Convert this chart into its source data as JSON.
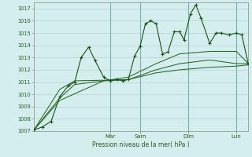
{
  "background_color": "#d4eeed",
  "grid_color": "#aacfcf",
  "line_color_main": "#1a5218",
  "line_color_smooth": "#2a6628",
  "ylabel": "Pression niveau de la mer( hPa )",
  "ylim": [
    1007,
    1017.5
  ],
  "yticks": [
    1007,
    1008,
    1009,
    1010,
    1011,
    1012,
    1013,
    1014,
    1015,
    1016,
    1017
  ],
  "day_labels": [
    "Mar",
    "Sam",
    "Dim",
    "Lun"
  ],
  "day_positions": [
    0.355,
    0.495,
    0.72,
    0.945
  ],
  "series1": [
    [
      0.0,
      1007.1
    ],
    [
      0.04,
      1007.35
    ],
    [
      0.08,
      1007.8
    ],
    [
      0.12,
      1009.8
    ],
    [
      0.16,
      1010.7
    ],
    [
      0.19,
      1011.0
    ],
    [
      0.22,
      1013.0
    ],
    [
      0.255,
      1013.85
    ],
    [
      0.285,
      1012.75
    ],
    [
      0.325,
      1011.4
    ],
    [
      0.355,
      1011.1
    ],
    [
      0.39,
      1011.2
    ],
    [
      0.415,
      1011.1
    ],
    [
      0.44,
      1011.2
    ],
    [
      0.47,
      1013.15
    ],
    [
      0.495,
      1013.9
    ],
    [
      0.52,
      1015.75
    ],
    [
      0.545,
      1016.0
    ],
    [
      0.57,
      1015.75
    ],
    [
      0.6,
      1013.3
    ],
    [
      0.625,
      1013.45
    ],
    [
      0.655,
      1015.1
    ],
    [
      0.68,
      1015.1
    ],
    [
      0.7,
      1014.45
    ],
    [
      0.73,
      1016.55
    ],
    [
      0.755,
      1017.3
    ],
    [
      0.78,
      1016.2
    ],
    [
      0.82,
      1014.15
    ],
    [
      0.85,
      1015.0
    ],
    [
      0.875,
      1015.0
    ],
    [
      0.91,
      1014.85
    ],
    [
      0.945,
      1015.0
    ],
    [
      0.97,
      1014.85
    ],
    [
      1.0,
      1012.5
    ]
  ],
  "series2": [
    [
      0.0,
      1007.1
    ],
    [
      0.12,
      1009.7
    ],
    [
      0.19,
      1010.8
    ],
    [
      0.325,
      1011.1
    ],
    [
      0.44,
      1011.2
    ],
    [
      0.57,
      1012.0
    ],
    [
      0.68,
      1012.5
    ],
    [
      0.82,
      1012.8
    ],
    [
      0.945,
      1012.5
    ],
    [
      1.0,
      1012.5
    ]
  ],
  "series3": [
    [
      0.0,
      1007.1
    ],
    [
      0.12,
      1009.5
    ],
    [
      0.325,
      1011.1
    ],
    [
      0.44,
      1011.4
    ],
    [
      0.57,
      1012.5
    ],
    [
      0.68,
      1013.3
    ],
    [
      0.82,
      1013.5
    ],
    [
      0.945,
      1013.5
    ],
    [
      1.0,
      1012.5
    ]
  ],
  "series4": [
    [
      0.0,
      1007.1
    ],
    [
      0.12,
      1010.4
    ],
    [
      0.19,
      1011.1
    ],
    [
      0.325,
      1011.15
    ],
    [
      0.44,
      1011.2
    ],
    [
      0.57,
      1011.75
    ],
    [
      0.68,
      1012.0
    ],
    [
      0.82,
      1012.2
    ],
    [
      0.945,
      1012.3
    ],
    [
      1.0,
      1012.4
    ]
  ]
}
